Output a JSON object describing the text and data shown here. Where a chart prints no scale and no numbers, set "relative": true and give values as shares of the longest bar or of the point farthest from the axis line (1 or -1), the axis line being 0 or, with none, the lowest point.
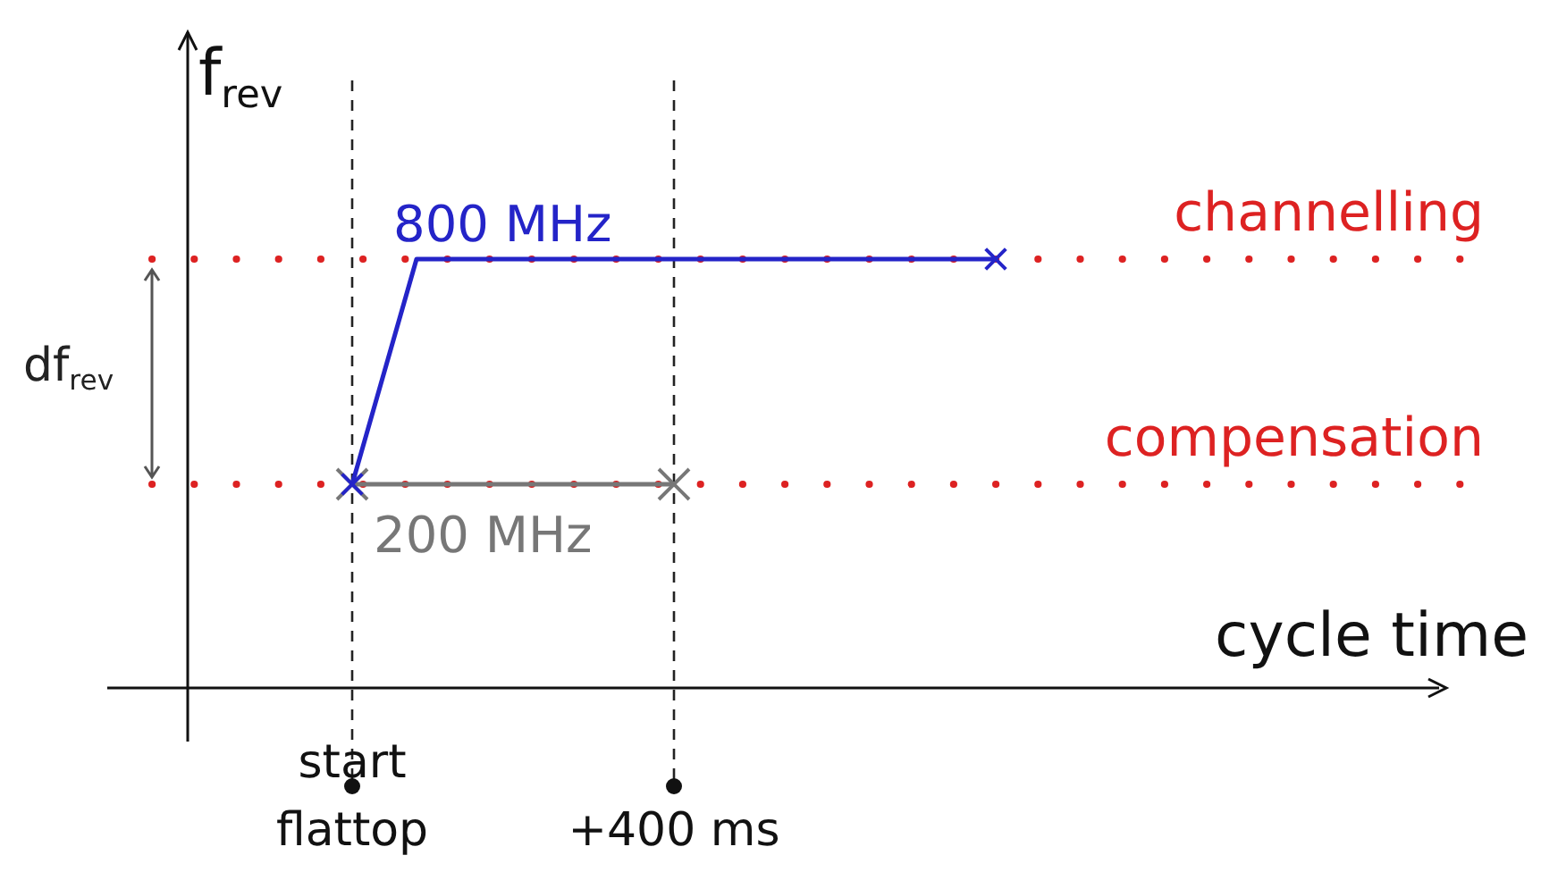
{
  "chart_data": {
    "type": "line",
    "xlabel": "cycle time",
    "ylabel": "f$_{rev}$",
    "relative": true,
    "categories": [
      null,
      null,
      "start flattop",
      null,
      null,
      null,
      null,
      "+400 ms",
      null,
      null,
      null,
      null,
      null,
      null,
      null,
      null,
      null,
      null,
      null,
      null
    ],
    "grid": "x",
    "marker": "cross",
    "line_style": "solid",
    "series": [
      {
        "name": "800 MHz",
        "color": "#2424c8",
        "values": [
          null,
          null,
          0.475,
          1,
          null,
          null,
          null,
          null,
          null,
          null,
          null,
          null,
          1,
          null,
          null,
          null,
          null,
          null,
          null,
          null
        ]
      },
      {
        "name": "200 MHz",
        "color": "#777777",
        "values": [
          null,
          null,
          0.475,
          null,
          null,
          null,
          null,
          0.475,
          null,
          null,
          null,
          null,
          null,
          null,
          null,
          null,
          null,
          null,
          null,
          null
        ]
      }
    ],
    "ref_lines": [
      {
        "axis": "y",
        "value": 1,
        "label": "channelling",
        "color": "#dd2222",
        "line_style": "dotted"
      },
      {
        "axis": "y",
        "value": 0.475,
        "label": "compensation",
        "color": "#dd2222",
        "line_style": "dotted"
      }
    ],
    "annotations": [
      "df$_{rev}$"
    ]
  }
}
